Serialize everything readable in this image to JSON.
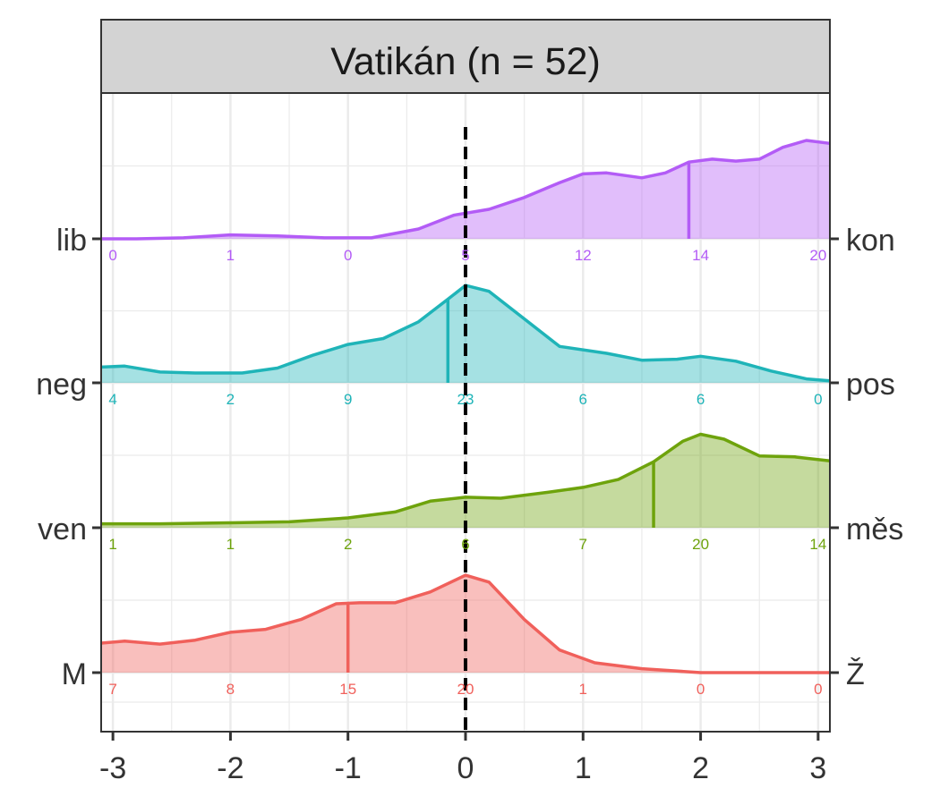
{
  "chart_data": {
    "type": "ridgeline",
    "title": "Vatikán (n = 52)",
    "xlim": [
      -3.1,
      3.1
    ],
    "x_ticks": [
      "-3",
      "-2",
      "-1",
      "0",
      "1",
      "2",
      "3"
    ],
    "reference_line_x": 0,
    "colors": {
      "lib_kon": "#b35cf6",
      "neg_pos": "#1fb4b8",
      "ven_mes": "#6ea30c",
      "m_z": "#f0605b",
      "panel_border": "#333333",
      "grid": "#e6e6e6",
      "strip_fill": "#d3d3d3"
    },
    "series": [
      {
        "key": "lib_kon",
        "left_label": "lib",
        "right_label": "kon",
        "counts": [
          "0",
          "1",
          "0",
          "5",
          "12",
          "14",
          "20"
        ],
        "median": 1.9,
        "density": [
          [
            -3.1,
            0.0
          ],
          [
            -2.8,
            0.0
          ],
          [
            -2.4,
            0.01
          ],
          [
            -2.0,
            0.04
          ],
          [
            -1.6,
            0.03
          ],
          [
            -1.2,
            0.01
          ],
          [
            -0.8,
            0.01
          ],
          [
            -0.4,
            0.1
          ],
          [
            -0.1,
            0.24
          ],
          [
            0.2,
            0.3
          ],
          [
            0.5,
            0.42
          ],
          [
            0.8,
            0.57
          ],
          [
            1.0,
            0.66
          ],
          [
            1.2,
            0.67
          ],
          [
            1.5,
            0.62
          ],
          [
            1.7,
            0.67
          ],
          [
            1.9,
            0.78
          ],
          [
            2.1,
            0.81
          ],
          [
            2.3,
            0.79
          ],
          [
            2.5,
            0.81
          ],
          [
            2.7,
            0.93
          ],
          [
            2.9,
            1.0
          ],
          [
            3.1,
            0.97
          ]
        ]
      },
      {
        "key": "neg_pos",
        "left_label": "neg",
        "right_label": "pos",
        "counts": [
          "4",
          "2",
          "9",
          "23",
          "6",
          "6",
          "0"
        ],
        "median": -0.15,
        "density": [
          [
            -3.1,
            0.16
          ],
          [
            -2.9,
            0.17
          ],
          [
            -2.6,
            0.11
          ],
          [
            -2.3,
            0.1
          ],
          [
            -1.9,
            0.1
          ],
          [
            -1.6,
            0.15
          ],
          [
            -1.3,
            0.28
          ],
          [
            -1.0,
            0.39
          ],
          [
            -0.7,
            0.45
          ],
          [
            -0.4,
            0.62
          ],
          [
            -0.15,
            0.85
          ],
          [
            0.0,
            0.99
          ],
          [
            0.2,
            0.93
          ],
          [
            0.5,
            0.65
          ],
          [
            0.8,
            0.37
          ],
          [
            1.2,
            0.3
          ],
          [
            1.5,
            0.23
          ],
          [
            1.8,
            0.24
          ],
          [
            2.0,
            0.27
          ],
          [
            2.3,
            0.22
          ],
          [
            2.6,
            0.12
          ],
          [
            2.9,
            0.04
          ],
          [
            3.1,
            0.02
          ]
        ]
      },
      {
        "key": "ven_mes",
        "left_label": "ven",
        "right_label": "měs",
        "counts": [
          "1",
          "1",
          "2",
          "6",
          "7",
          "20",
          "14"
        ],
        "median": 1.6,
        "density": [
          [
            -3.1,
            0.04
          ],
          [
            -2.6,
            0.04
          ],
          [
            -2.0,
            0.05
          ],
          [
            -1.5,
            0.06
          ],
          [
            -1.0,
            0.1
          ],
          [
            -0.6,
            0.16
          ],
          [
            -0.3,
            0.27
          ],
          [
            0.0,
            0.31
          ],
          [
            0.3,
            0.3
          ],
          [
            0.7,
            0.36
          ],
          [
            1.0,
            0.41
          ],
          [
            1.3,
            0.49
          ],
          [
            1.6,
            0.67
          ],
          [
            1.85,
            0.88
          ],
          [
            2.0,
            0.95
          ],
          [
            2.2,
            0.9
          ],
          [
            2.5,
            0.73
          ],
          [
            2.8,
            0.72
          ],
          [
            3.1,
            0.68
          ]
        ]
      },
      {
        "key": "m_z",
        "left_label": "M",
        "right_label": "Ž",
        "counts": [
          "7",
          "8",
          "15",
          "20",
          "1",
          "0",
          "0"
        ],
        "median": -1.0,
        "density": [
          [
            -3.1,
            0.3
          ],
          [
            -2.9,
            0.32
          ],
          [
            -2.6,
            0.29
          ],
          [
            -2.3,
            0.33
          ],
          [
            -2.0,
            0.41
          ],
          [
            -1.7,
            0.44
          ],
          [
            -1.4,
            0.54
          ],
          [
            -1.1,
            0.7
          ],
          [
            -0.9,
            0.71
          ],
          [
            -0.6,
            0.71
          ],
          [
            -0.3,
            0.82
          ],
          [
            0.0,
            0.99
          ],
          [
            0.2,
            0.92
          ],
          [
            0.5,
            0.54
          ],
          [
            0.8,
            0.23
          ],
          [
            1.1,
            0.1
          ],
          [
            1.5,
            0.04
          ],
          [
            2.0,
            0.0
          ],
          [
            3.1,
            0.0
          ]
        ]
      }
    ]
  }
}
